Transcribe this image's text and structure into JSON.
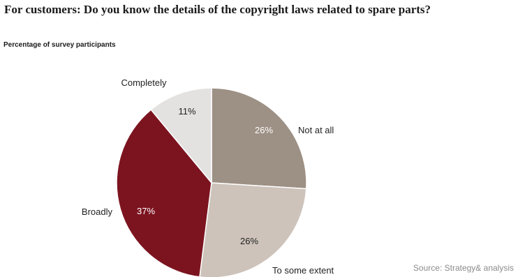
{
  "title": "For customers: Do you know the details of the copyright laws related to spare parts?",
  "subtitle": "Percentage of survey participants",
  "source": "Source: Strategy& analysis",
  "chart_data": {
    "type": "pie",
    "slices": [
      {
        "label": "Not at all",
        "value": 26,
        "value_label": "26%",
        "color": "#9d9084"
      },
      {
        "label": "To some extent",
        "value": 26,
        "value_label": "26%",
        "color": "#cdc3bb"
      },
      {
        "label": "Broadly",
        "value": 37,
        "value_label": "37%",
        "color": "#7c1420"
      },
      {
        "label": "Completely",
        "value": 11,
        "value_label": "11%",
        "color": "#e4e2e0"
      }
    ]
  }
}
